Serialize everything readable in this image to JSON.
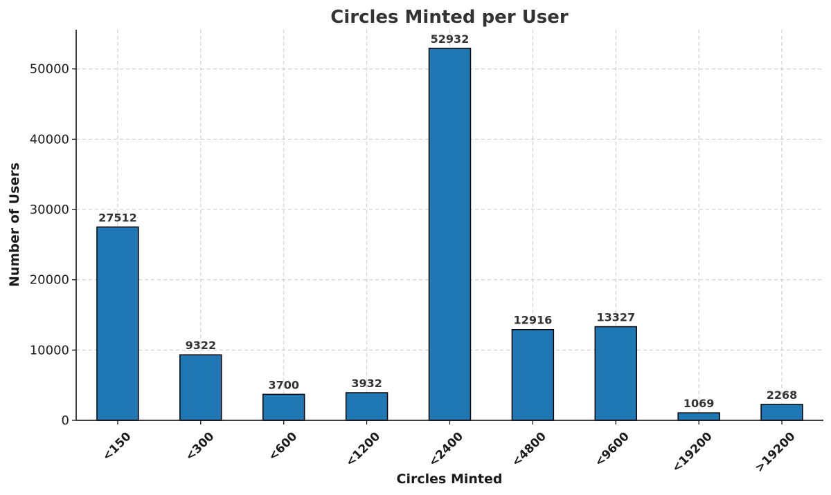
{
  "chart_data": {
    "type": "bar",
    "title": "Circles Minted per User",
    "xlabel": "Circles Minted",
    "ylabel": "Number of Users",
    "categories": [
      "<150",
      "<300",
      "<600",
      "<1200",
      "<2400",
      "<4800",
      "<9600",
      "<19200",
      ">19200"
    ],
    "values": [
      27512,
      9322,
      3700,
      3932,
      52932,
      12916,
      13327,
      1069,
      2268
    ],
    "data_labels": [
      "27512",
      "9322",
      "3700",
      "3932",
      "52932",
      "12916",
      "13327",
      "1069",
      "2268"
    ],
    "ylim": [
      0,
      55578
    ],
    "yticks": [
      0,
      10000,
      20000,
      30000,
      40000,
      50000
    ],
    "ytick_labels": [
      "0",
      "10000",
      "20000",
      "30000",
      "40000",
      "50000"
    ],
    "grid": true,
    "bar_color": "#1f77b4",
    "edge_color": "#000000"
  }
}
